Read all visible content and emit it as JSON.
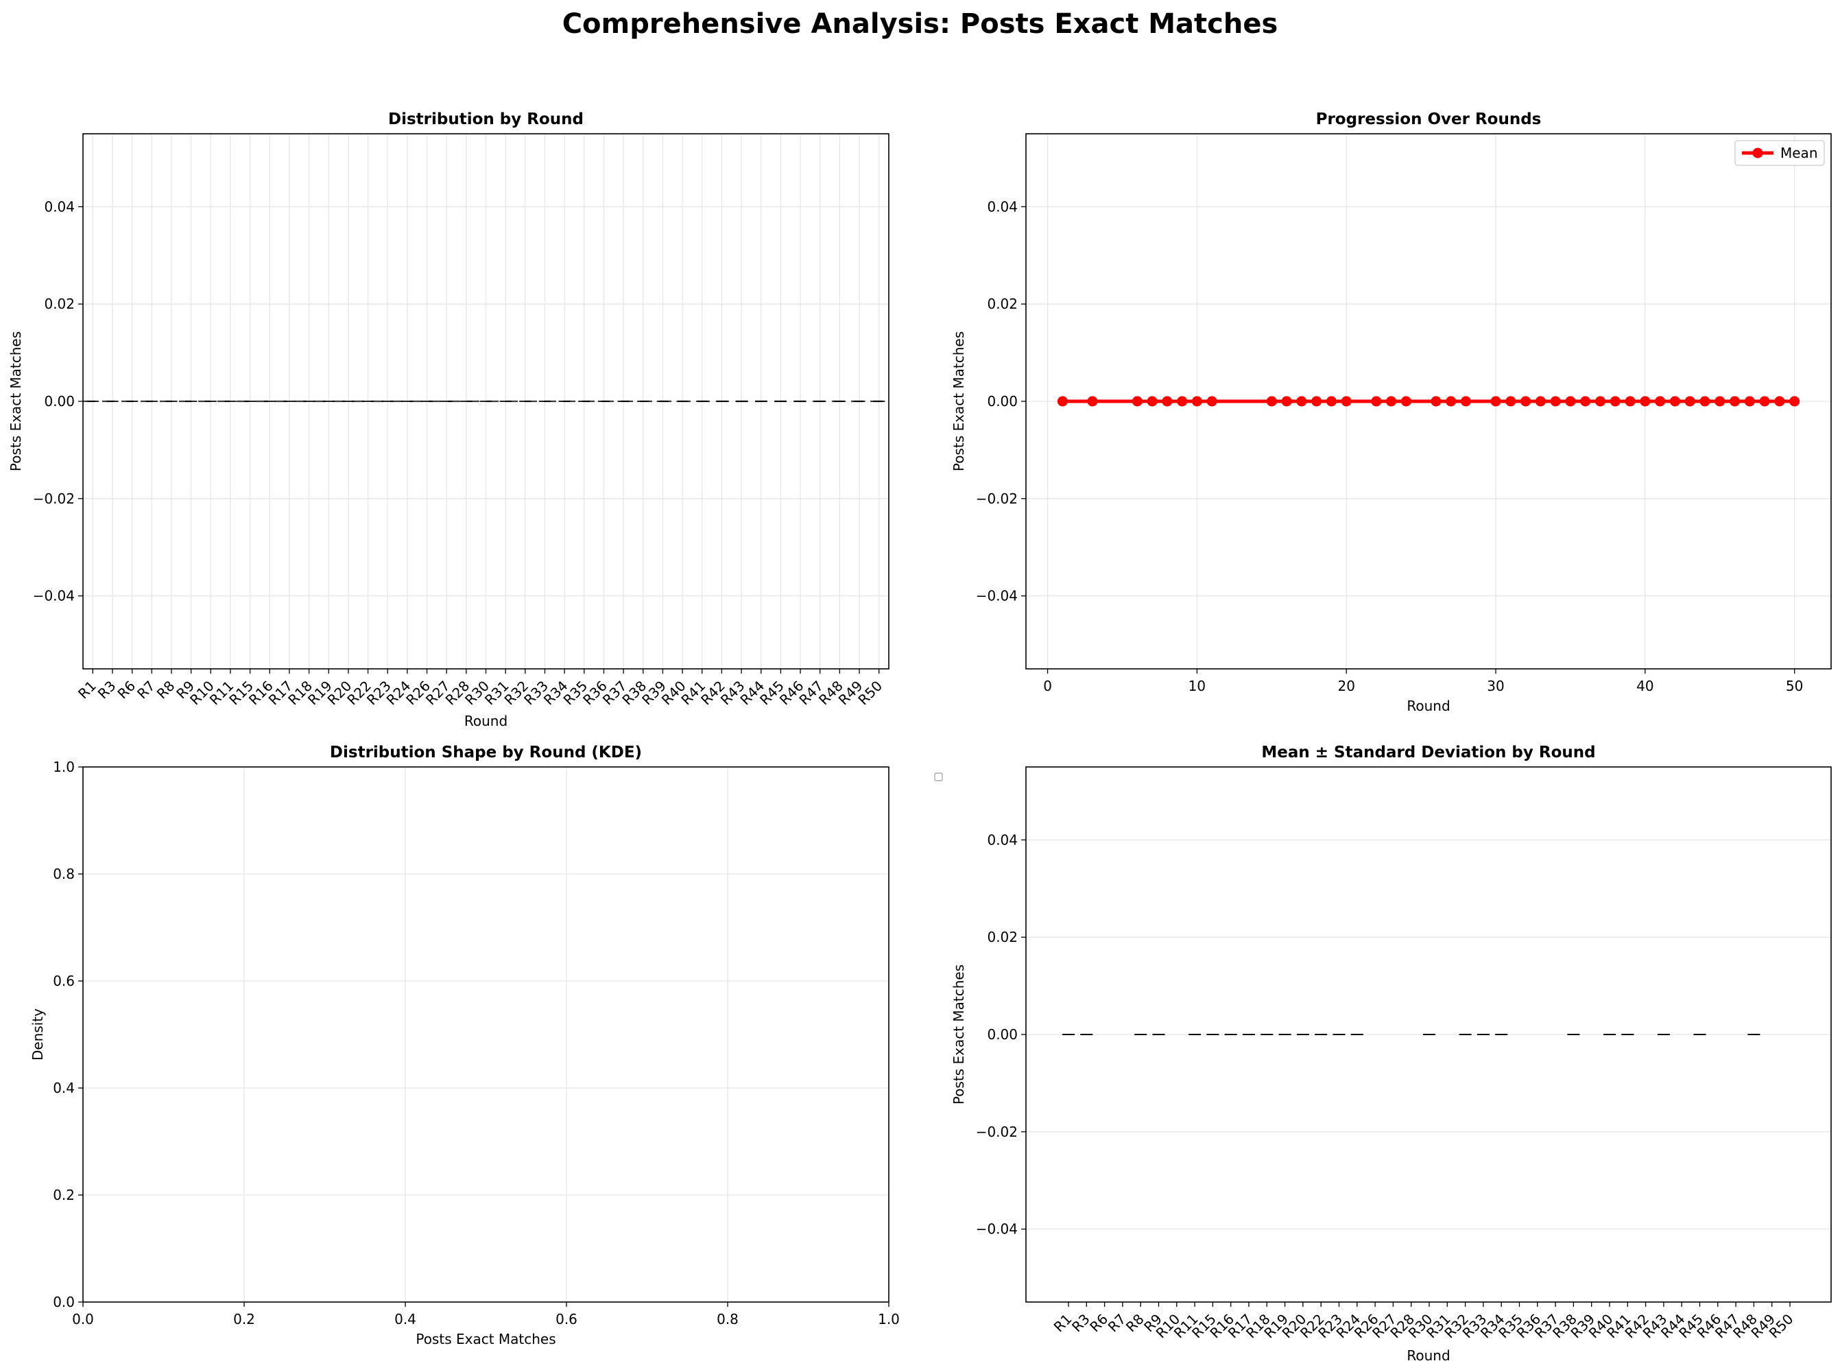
{
  "figure": {
    "suptitle": "Comprehensive Analysis: Posts Exact Matches"
  },
  "chart_data": [
    {
      "type": "box",
      "title": "Distribution by Round",
      "xlabel": "Round",
      "ylabel": "Posts Exact Matches",
      "categories": [
        "R1",
        "R3",
        "R6",
        "R7",
        "R8",
        "R9",
        "R10",
        "R11",
        "R15",
        "R16",
        "R17",
        "R18",
        "R19",
        "R20",
        "R22",
        "R23",
        "R24",
        "R26",
        "R27",
        "R28",
        "R30",
        "R31",
        "R32",
        "R33",
        "R34",
        "R35",
        "R36",
        "R37",
        "R38",
        "R39",
        "R40",
        "R41",
        "R42",
        "R43",
        "R44",
        "R45",
        "R46",
        "R47",
        "R48",
        "R49",
        "R50"
      ],
      "values": [
        0,
        0,
        0,
        0,
        0,
        0,
        0,
        0,
        0,
        0,
        0,
        0,
        0,
        0,
        0,
        0,
        0,
        0,
        0,
        0,
        0,
        0,
        0,
        0,
        0,
        0,
        0,
        0,
        0,
        0,
        0,
        0,
        0,
        0,
        0,
        0,
        0,
        0,
        0,
        0,
        0
      ],
      "ylim": [
        -0.055,
        0.055
      ],
      "yticks": [
        -0.04,
        -0.02,
        0.0,
        0.02,
        0.04
      ],
      "ytick_labels": [
        "−0.04",
        "−0.02",
        "0.00",
        "0.02",
        "0.04"
      ],
      "grid": true,
      "reference_line": 0.0
    },
    {
      "type": "line",
      "title": "Progression Over Rounds",
      "xlabel": "Round",
      "ylabel": "Posts Exact Matches",
      "series": [
        {
          "name": "Mean",
          "color": "#ff0000",
          "x": [
            1,
            3,
            6,
            7,
            8,
            9,
            10,
            11,
            15,
            16,
            17,
            18,
            19,
            20,
            22,
            23,
            24,
            26,
            27,
            28,
            30,
            31,
            32,
            33,
            34,
            35,
            36,
            37,
            38,
            39,
            40,
            41,
            42,
            43,
            44,
            45,
            46,
            47,
            48,
            49,
            50
          ],
          "y": [
            0,
            0,
            0,
            0,
            0,
            0,
            0,
            0,
            0,
            0,
            0,
            0,
            0,
            0,
            0,
            0,
            0,
            0,
            0,
            0,
            0,
            0,
            0,
            0,
            0,
            0,
            0,
            0,
            0,
            0,
            0,
            0,
            0,
            0,
            0,
            0,
            0,
            0,
            0,
            0,
            0
          ]
        }
      ],
      "xlim": [
        -1.45,
        52.45
      ],
      "xticks": [
        0,
        10,
        20,
        30,
        40,
        50
      ],
      "xtick_labels": [
        "0",
        "10",
        "20",
        "30",
        "40",
        "50"
      ],
      "ylim": [
        -0.055,
        0.055
      ],
      "yticks": [
        -0.04,
        -0.02,
        0.0,
        0.02,
        0.04
      ],
      "ytick_labels": [
        "−0.04",
        "−0.02",
        "0.00",
        "0.02",
        "0.04"
      ],
      "grid": true,
      "legend": "top-right"
    },
    {
      "type": "area",
      "title": "Distribution Shape by Round (KDE)",
      "xlabel": "Posts Exact Matches",
      "ylabel": "Density",
      "series": [],
      "xlim": [
        0,
        1
      ],
      "ylim": [
        0,
        1
      ],
      "xticks": [
        0,
        0.2,
        0.4,
        0.6,
        0.8,
        1.0
      ],
      "xtick_labels": [
        "0.0",
        "0.2",
        "0.4",
        "0.6",
        "0.8",
        "1.0"
      ],
      "yticks": [
        0,
        0.2,
        0.4,
        0.6,
        0.8,
        1.0
      ],
      "ytick_labels": [
        "0.0",
        "0.2",
        "0.4",
        "0.6",
        "0.8",
        "1.0"
      ],
      "grid": true,
      "legend": "outside-right-top (empty)"
    },
    {
      "type": "bar",
      "title": "Mean ± Standard Deviation by Round",
      "xlabel": "Round",
      "ylabel": "Posts Exact Matches",
      "categories": [
        "R1",
        "R3",
        "R6",
        "R7",
        "R8",
        "R9",
        "R10",
        "R11",
        "R15",
        "R16",
        "R17",
        "R18",
        "R19",
        "R20",
        "R22",
        "R23",
        "R24",
        "R26",
        "R27",
        "R28",
        "R30",
        "R31",
        "R32",
        "R33",
        "R34",
        "R35",
        "R36",
        "R37",
        "R38",
        "R39",
        "R40",
        "R41",
        "R42",
        "R43",
        "R44",
        "R45",
        "R46",
        "R47",
        "R48",
        "R49",
        "R50"
      ],
      "values": [
        0,
        0,
        0,
        0,
        0,
        0,
        0,
        0,
        0,
        0,
        0,
        0,
        0,
        0,
        0,
        0,
        0,
        0,
        0,
        0,
        0,
        0,
        0,
        0,
        0,
        0,
        0,
        0,
        0,
        0,
        0,
        0,
        0,
        0,
        0,
        0,
        0,
        0,
        0,
        0,
        0
      ],
      "error_cap_shown": [
        true,
        true,
        false,
        false,
        true,
        true,
        false,
        true,
        true,
        true,
        true,
        true,
        true,
        true,
        true,
        true,
        true,
        false,
        false,
        false,
        true,
        false,
        true,
        true,
        true,
        false,
        false,
        false,
        true,
        false,
        true,
        true,
        false,
        true,
        false,
        true,
        false,
        false,
        true,
        false,
        false
      ],
      "ylim": [
        -0.055,
        0.055
      ],
      "yticks": [
        -0.04,
        -0.02,
        0.0,
        0.02,
        0.04
      ],
      "ytick_labels": [
        "−0.04",
        "−0.02",
        "0.00",
        "0.02",
        "0.04"
      ],
      "grid": "y-only"
    }
  ]
}
